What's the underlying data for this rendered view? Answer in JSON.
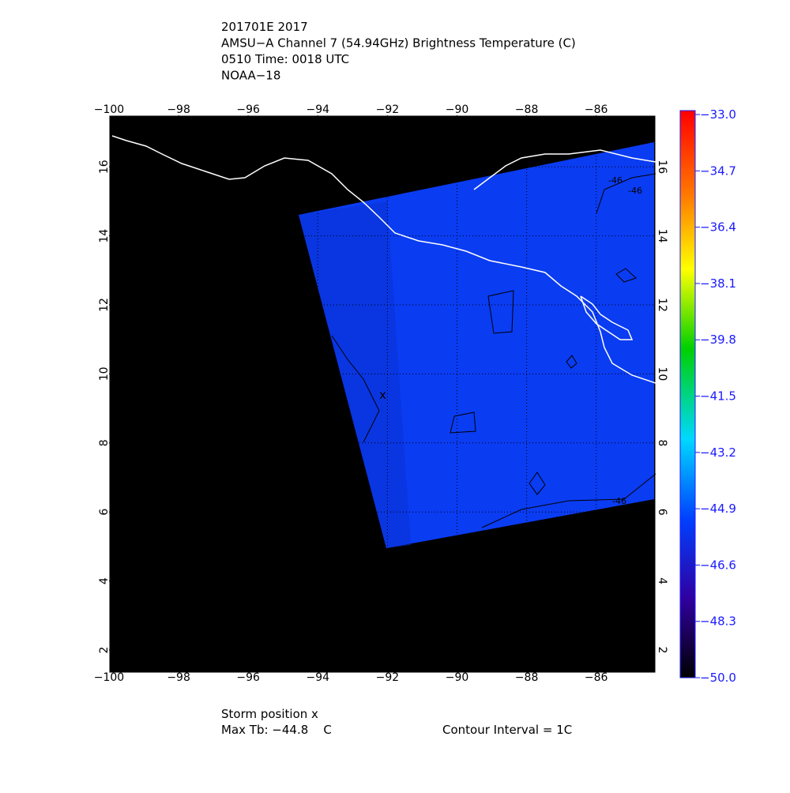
{
  "header": {
    "lines": [
      "201701E 2017",
      "AMSU−A Channel 7 (54.94GHz) Brightness Temperature (C)",
      "0510 Time: 0018 UTC",
      "NOAA−18"
    ]
  },
  "map": {
    "lon_labels": [
      "−100",
      "−98",
      "−96",
      "−94",
      "−92",
      "−90",
      "−88",
      "−86"
    ],
    "lat_labels": [
      "2",
      "4",
      "6",
      "8",
      "10",
      "12",
      "14",
      "16"
    ],
    "contour_labels": [
      "-46",
      "-46",
      "-46"
    ]
  },
  "colorbar": {
    "labels": [
      "−33.0",
      "−34.7",
      "−36.4",
      "−38.1",
      "−39.8",
      "−41.5",
      "−43.2",
      "−44.9",
      "−46.6",
      "−48.3",
      "−50.0"
    ]
  },
  "footer": {
    "storm": "Storm position x",
    "max_tb": "Max Tb: −44.8    C",
    "contour": "Contour Interval = 1C"
  }
}
